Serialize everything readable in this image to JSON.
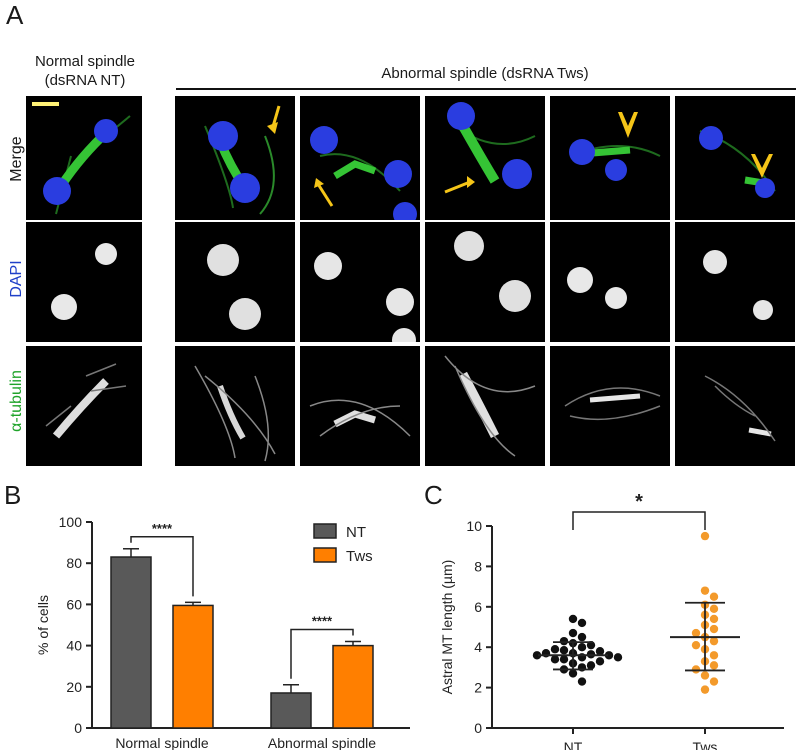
{
  "figure": {
    "panel_a": {
      "letter": "A",
      "normal_title_line1": "Normal spindle",
      "normal_title_line2": "(dsRNA NT)",
      "abnormal_title": "Abnormal spindle (dsRNA Tws)",
      "row_labels": [
        "Merge",
        "DAPI",
        "α-tubulin"
      ],
      "row_label_colors": {
        "Merge": "#1a1a1a",
        "DAPI": "#2040c8",
        "α-tubulin": "#1fa32a"
      }
    },
    "panel_b": {
      "letter": "B"
    },
    "panel_c": {
      "letter": "C"
    }
  },
  "chart_data": [
    {
      "type": "bar",
      "categories": [
        "Normal spindle",
        "Abnormal spindle"
      ],
      "series": [
        {
          "name": "NT",
          "values": [
            83,
            17
          ],
          "errors": [
            4,
            4
          ],
          "color": "#595959"
        },
        {
          "name": "Tws",
          "values": [
            59.5,
            40
          ],
          "errors": [
            1.5,
            2
          ],
          "color": "#ff7f00"
        }
      ],
      "ylabel": "% of cells",
      "ylim": [
        0,
        100
      ],
      "yticks": [
        0,
        20,
        40,
        60,
        80,
        100
      ],
      "legend": "top-right",
      "significance": [
        "****",
        "****"
      ]
    },
    {
      "type": "scatter",
      "categories": [
        "NT",
        "Tws"
      ],
      "ylabel": "Astral MT length (µm)",
      "ylim": [
        0,
        10
      ],
      "yticks": [
        0,
        2,
        4,
        6,
        8,
        10
      ],
      "series": [
        {
          "name": "NT",
          "color": "#111111",
          "mean": 3.6,
          "sd_low": 2.9,
          "sd_high": 4.25,
          "values": [
            5.4,
            5.2,
            4.7,
            4.5,
            4.3,
            4.2,
            4.1,
            4.0,
            3.9,
            3.85,
            3.8,
            3.7,
            3.7,
            3.65,
            3.6,
            3.6,
            3.5,
            3.5,
            3.4,
            3.4,
            3.3,
            3.2,
            3.1,
            3.0,
            2.9,
            2.7,
            2.3
          ]
        },
        {
          "name": "Tws",
          "color": "#f39a2b",
          "mean": 4.5,
          "sd_low": 2.85,
          "sd_high": 6.2,
          "values": [
            9.5,
            6.8,
            6.5,
            6.1,
            5.9,
            5.6,
            5.4,
            5.1,
            4.9,
            4.7,
            4.5,
            4.3,
            4.1,
            3.9,
            3.6,
            3.3,
            3.1,
            2.9,
            2.6,
            2.3,
            1.9
          ]
        }
      ],
      "significance": "*"
    }
  ]
}
